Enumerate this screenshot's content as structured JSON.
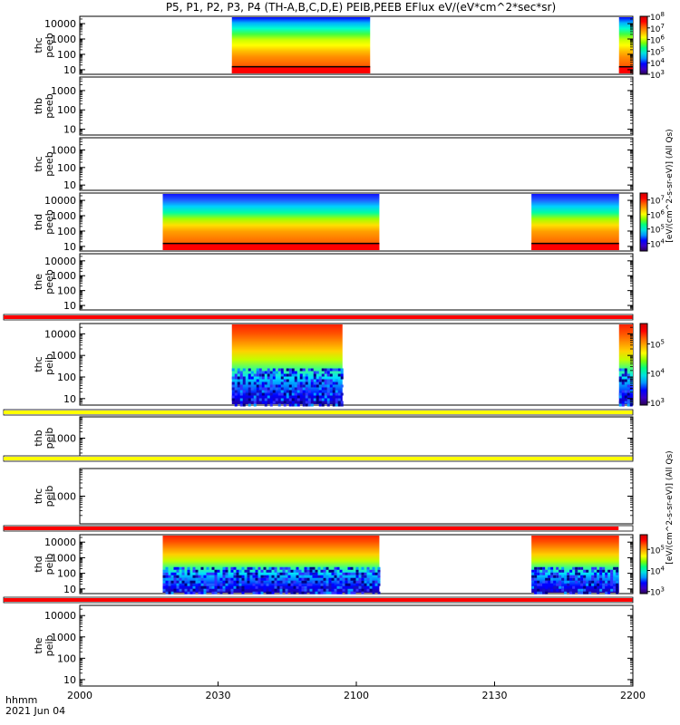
{
  "chart_data": {
    "type": "heatmap",
    "title": "P5, P1, P2, P3, P4 (TH-A,B,C,D,E) PEIB,PEEB EFlux eV/(eV*cm^2*sec*sr)",
    "x_ticks": [
      "2000",
      "2030",
      "2100",
      "2130",
      "2200"
    ],
    "x_range": [
      "2021-06-04 20:00",
      "2021-06-04 22:00"
    ],
    "time_label": "hhmm",
    "date_label": "2021 Jun 04",
    "y_scale": "log",
    "colorbar_labels": {
      "electron": "[eV/(cm^2-s-sr-eV)] (All Qs)",
      "ion": "[eV/(cm^2-s-sr-eV)] (All Qs)"
    },
    "panels": [
      {
        "probe_label": "thc peeb",
        "species": "electron",
        "y_ticks": [
          "10",
          "100",
          "1000",
          "10000"
        ],
        "ylim": [
          5,
          30000
        ],
        "data_intervals": [
          [
            "20:33",
            "21:03"
          ],
          [
            "21:57",
            "22:00"
          ]
        ],
        "colorbar": {
          "ticks": [
            "10^3",
            "10^4",
            "10^5",
            "10^6",
            "10^7",
            "10^8"
          ],
          "range": [
            1000,
            100000000
          ]
        }
      },
      {
        "probe_label": "thb peeb",
        "species": "electron",
        "y_ticks": [
          "10",
          "100",
          "1000"
        ],
        "ylim": [
          5,
          5000
        ],
        "data_intervals": []
      },
      {
        "probe_label": "thc peeb",
        "species": "electron",
        "y_ticks": [
          "10",
          "100",
          "1000"
        ],
        "ylim": [
          5,
          5000
        ],
        "data_intervals": []
      },
      {
        "probe_label": "thd peeb",
        "species": "electron",
        "y_ticks": [
          "10",
          "100",
          "1000",
          "10000"
        ],
        "ylim": [
          5,
          30000
        ],
        "data_intervals": [
          [
            "20:18",
            "21:05"
          ],
          [
            "21:38",
            "21:57"
          ]
        ],
        "colorbar": {
          "ticks": [
            "10^4",
            "10^5",
            "10^6",
            "10^7"
          ],
          "range": [
            3000,
            30000000
          ]
        }
      },
      {
        "probe_label": "the peeb",
        "species": "electron",
        "y_ticks": [
          "10",
          "100",
          "1000",
          "10000"
        ],
        "ylim": [
          5,
          30000
        ],
        "data_intervals": []
      },
      {
        "probe_label": "thc peib",
        "species": "ion",
        "y_ticks": [
          "10",
          "100",
          "1000",
          "10000"
        ],
        "ylim": [
          5,
          30000
        ],
        "data_intervals": [
          [
            "20:33",
            "20:57"
          ],
          [
            "21:57",
            "22:00"
          ]
        ],
        "colorbar": {
          "ticks": [
            "10^3",
            "10^4",
            "10^5"
          ],
          "range": [
            800,
            500000
          ]
        }
      },
      {
        "probe_label": "thb peib",
        "species": "ion",
        "y_ticks": [
          "1000"
        ],
        "ylim": [
          100,
          10000
        ],
        "data_intervals": []
      },
      {
        "probe_label": "thc peib",
        "species": "ion",
        "y_ticks": [
          "1000"
        ],
        "ylim": [
          100,
          10000
        ],
        "data_intervals": []
      },
      {
        "probe_label": "thd peib",
        "species": "ion",
        "y_ticks": [
          "10",
          "100",
          "1000",
          "10000"
        ],
        "ylim": [
          5,
          30000
        ],
        "data_intervals": [
          [
            "20:18",
            "21:05"
          ],
          [
            "21:38",
            "21:57"
          ]
        ],
        "colorbar": {
          "ticks": [
            "10^3",
            "10^4",
            "10^5"
          ],
          "range": [
            800,
            500000
          ]
        }
      },
      {
        "probe_label": "the peib",
        "species": "ion",
        "y_ticks": [
          "10",
          "100",
          "1000",
          "10000"
        ],
        "ylim": [
          5,
          30000
        ],
        "data_intervals": []
      }
    ],
    "mode_bars": [
      {
        "after_panel": 5,
        "color": "#ff0000",
        "interval": [
          "20:00",
          "22:00"
        ]
      },
      {
        "after_panel": 6,
        "color": "#ffff00",
        "interval": [
          "20:00",
          "22:00"
        ]
      },
      {
        "after_panel": 7,
        "color": "#ffff00",
        "interval": [
          "20:00",
          "22:00"
        ]
      },
      {
        "after_panel": 8,
        "color": "#ff0000",
        "interval": [
          "20:00",
          "21:57"
        ]
      },
      {
        "after_panel": 9,
        "color": "#ff0000",
        "interval": [
          "20:00",
          "22:00"
        ]
      }
    ]
  }
}
